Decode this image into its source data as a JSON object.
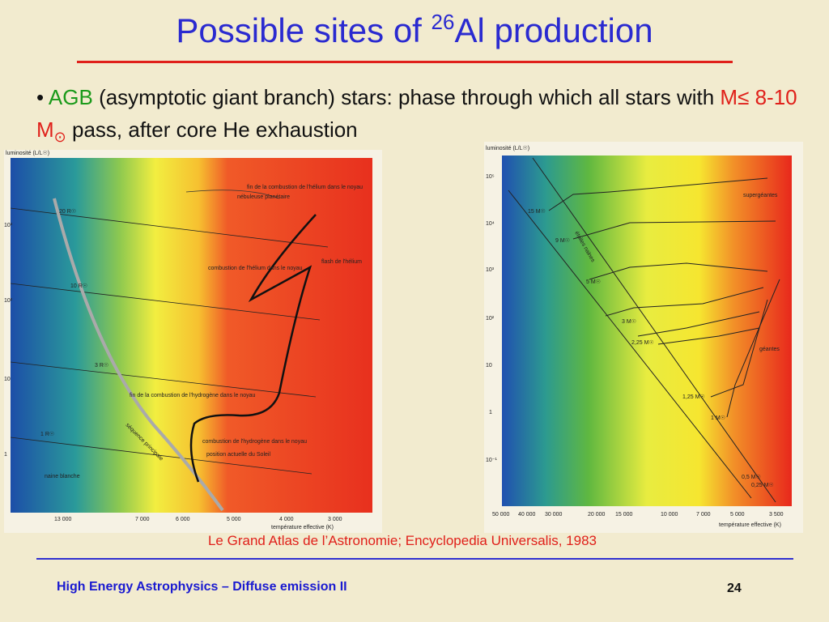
{
  "title": {
    "text": "Possible sites of ",
    "sup": "26",
    "rest": "Al production"
  },
  "bullet": {
    "term": "AGB",
    "text1": "(asymptotic giant branch) stars: phase through which all stars with",
    "mass": "M≤ 8-10 M",
    "sun": "⊙",
    "text2": "pass, after core He exhaustion"
  },
  "left_figure": {
    "y_axis_label": "luminosité (L/L☉)",
    "x_axis_label": "température effective (K)",
    "yticks": [
      "10³",
      "10²",
      "10",
      "1"
    ],
    "xticks": [
      "13 000",
      "7 000",
      "6 000",
      "5 000",
      "4 000",
      "3 000"
    ],
    "radius_labels": [
      "20 R☉",
      "10 R☉",
      "3 R☉",
      "1 R☉"
    ],
    "annotations": [
      "nébuleuse planétaire",
      "fin de la combustion de l'hélium dans le noyau",
      "combustion de l'hélium dans le noyau",
      "flash de l'hélium",
      "fin de la combustion de l'hydrogène dans le noyau",
      "combustion de l'hydrogène dans le noyau",
      "position actuelle du Soleil",
      "séquence principale",
      "naine blanche"
    ]
  },
  "right_figure": {
    "y_axis_label": "luminosité (L/L☉)",
    "x_axis_label": "température effective (K)",
    "yticks": [
      "10⁵",
      "10⁴",
      "10³",
      "10²",
      "10",
      "1",
      "10⁻¹"
    ],
    "xticks": [
      "50 000",
      "40 000",
      "30 000",
      "20 000",
      "15 000",
      "10 000",
      "7 000",
      "5 000",
      "3 500"
    ],
    "masses": [
      "15 M☉",
      "9 M☉",
      "5 M☉",
      "3 M☉",
      "2,25 M☉",
      "1,25 M☉",
      "1 M☉",
      "0,5 M☉",
      "0,25 M☉"
    ],
    "regions": [
      "supergéantes",
      "géantes",
      "étoiles naines"
    ]
  },
  "caption": "Le Grand Atlas de l’Astronomie; Encyclopedia Universalis, 1983",
  "footer": {
    "text": "High Energy Astrophysics – Diffuse emission II",
    "page": "24"
  }
}
